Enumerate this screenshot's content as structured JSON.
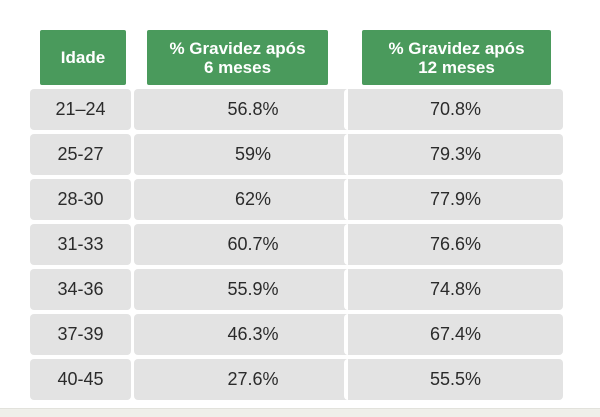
{
  "table": {
    "headers": {
      "age": "Idade",
      "six_months": "% Gravidez após\n6 meses",
      "twelve_months": "% Gravidez após\n12 meses"
    },
    "rows": [
      {
        "age": "21–24",
        "six": "56.8%",
        "twelve": "70.8%"
      },
      {
        "age": "25-27",
        "six": "59%",
        "twelve": "79.3%"
      },
      {
        "age": "28-30",
        "six": "62%",
        "twelve": "77.9%"
      },
      {
        "age": "31-33",
        "six": "60.7%",
        "twelve": "76.6%"
      },
      {
        "age": "34-36",
        "six": "55.9%",
        "twelve": "74.8%"
      },
      {
        "age": "37-39",
        "six": "46.3%",
        "twelve": "67.4%"
      },
      {
        "age": "40-45",
        "six": "27.6%",
        "twelve": "55.5%"
      }
    ]
  },
  "colors": {
    "header_bg": "#4a9a5c",
    "cell_bg": "#e3e3e3"
  }
}
